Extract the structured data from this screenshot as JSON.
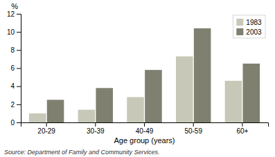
{
  "chart_data": {
    "type": "bar",
    "categories": [
      "20-29",
      "30-39",
      "40-49",
      "50-59",
      "60+"
    ],
    "series": [
      {
        "name": "1983",
        "color": "#c8c8b8",
        "values": [
          1.0,
          1.4,
          2.8,
          7.3,
          4.6
        ]
      },
      {
        "name": "2003",
        "color": "#808070",
        "values": [
          2.5,
          3.8,
          5.8,
          10.4,
          6.5
        ]
      }
    ],
    "xlabel": "Age group (years)",
    "ylabel": "%",
    "ylim": [
      0,
      12
    ],
    "yticks": [
      0,
      2,
      4,
      6,
      8,
      10,
      12
    ],
    "grid": false,
    "legend": "upper right",
    "annotations": [
      "Source: Department of Family and Community Services."
    ]
  }
}
